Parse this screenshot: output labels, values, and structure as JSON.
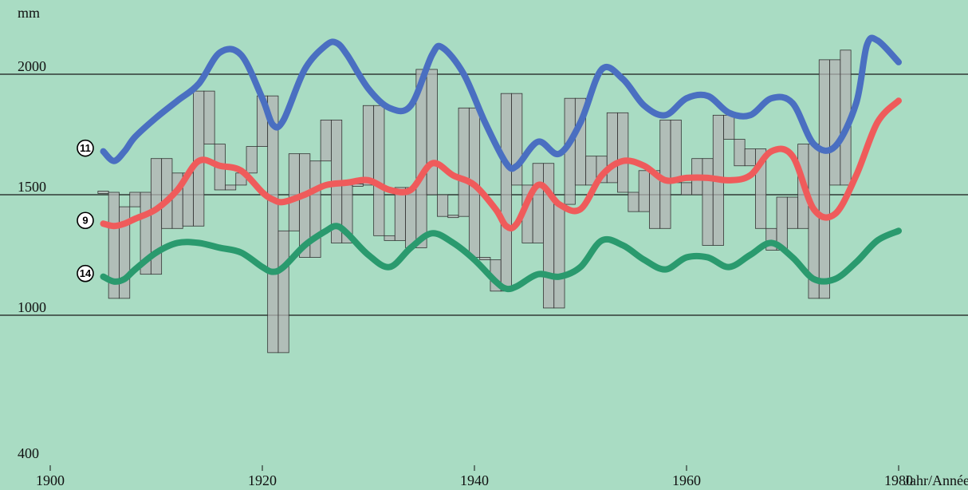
{
  "chart_data": {
    "type": "line",
    "yunit": "mm",
    "xlabel": "Jahr/Année",
    "xlim": [
      1900,
      1982
    ],
    "ylim": [
      400,
      2250
    ],
    "x_ticks": [
      "1900",
      "1920",
      "1940",
      "1960",
      "1980"
    ],
    "y_ticks": [
      "400",
      "1000",
      "1500",
      "2000"
    ],
    "grid": "horizontal at 1000, 1500, 2000",
    "background": "#a9dcc3",
    "series": [
      {
        "name": "⑪",
        "color": "#4a6fc1",
        "x": [
          1905,
          1906,
          1907,
          1908,
          1910,
          1912,
          1914,
          1916,
          1918,
          1920,
          1921,
          1922,
          1924,
          1926,
          1927,
          1928,
          1930,
          1932,
          1934,
          1936,
          1937,
          1939,
          1941,
          1943,
          1944,
          1946,
          1948,
          1950,
          1952,
          1954,
          1956,
          1958,
          1960,
          1962,
          1964,
          1966,
          1968,
          1970,
          1972,
          1974,
          1976,
          1977,
          1978,
          1980
        ],
        "values": [
          1680,
          1640,
          1680,
          1740,
          1820,
          1890,
          1960,
          2090,
          2080,
          1900,
          1790,
          1810,
          2020,
          2120,
          2130,
          2080,
          1940,
          1860,
          1870,
          2080,
          2110,
          2000,
          1800,
          1630,
          1620,
          1720,
          1670,
          1800,
          2020,
          1980,
          1870,
          1830,
          1900,
          1910,
          1840,
          1830,
          1900,
          1880,
          1710,
          1700,
          1880,
          2120,
          2140,
          2050
        ]
      },
      {
        "name": "⑨",
        "color": "#ef5b5b",
        "x": [
          1905,
          1906,
          1907,
          1908,
          1910,
          1912,
          1914,
          1916,
          1918,
          1920,
          1921,
          1922,
          1924,
          1926,
          1928,
          1930,
          1932,
          1934,
          1936,
          1938,
          1940,
          1942,
          1943,
          1944,
          1946,
          1948,
          1950,
          1952,
          1954,
          1956,
          1958,
          1960,
          1962,
          1964,
          1966,
          1968,
          1970,
          1972,
          1974,
          1976,
          1978,
          1980
        ],
        "values": [
          1380,
          1370,
          1380,
          1400,
          1440,
          1520,
          1640,
          1620,
          1600,
          1510,
          1480,
          1470,
          1500,
          1540,
          1550,
          1560,
          1520,
          1520,
          1630,
          1580,
          1540,
          1440,
          1370,
          1380,
          1540,
          1460,
          1440,
          1580,
          1640,
          1620,
          1560,
          1570,
          1570,
          1560,
          1580,
          1680,
          1660,
          1440,
          1420,
          1580,
          1800,
          1890
        ]
      },
      {
        "name": "⑭",
        "color": "#2a9a6e",
        "x": [
          1905,
          1906,
          1907,
          1908,
          1910,
          1912,
          1914,
          1916,
          1918,
          1920,
          1921,
          1922,
          1924,
          1926,
          1927,
          1928,
          1930,
          1932,
          1934,
          1936,
          1938,
          1940,
          1942,
          1943,
          1944,
          1946,
          1948,
          1950,
          1952,
          1954,
          1956,
          1958,
          1960,
          1962,
          1964,
          1966,
          1968,
          1970,
          1972,
          1974,
          1976,
          1978,
          1980
        ],
        "values": [
          1160,
          1140,
          1150,
          1190,
          1260,
          1300,
          1300,
          1280,
          1260,
          1200,
          1180,
          1200,
          1290,
          1350,
          1370,
          1340,
          1250,
          1200,
          1280,
          1340,
          1300,
          1230,
          1140,
          1110,
          1120,
          1170,
          1160,
          1200,
          1310,
          1290,
          1230,
          1190,
          1240,
          1240,
          1200,
          1250,
          1300,
          1240,
          1150,
          1150,
          1220,
          1310,
          1350
        ]
      }
    ],
    "bars": {
      "color": "#b4b4b4",
      "start_year": 1905,
      "values": [
        1510,
        1070,
        1450,
        1510,
        1170,
        1650,
        1360,
        1590,
        1370,
        1930,
        1710,
        1520,
        1540,
        1590,
        1700,
        1910,
        840,
        1350,
        1670,
        1240,
        1640,
        1810,
        1300,
        1540,
        1540,
        1870,
        1330,
        1310,
        1530,
        1280,
        2020,
        1500,
        1410,
        1410,
        1860,
        1240,
        1230,
        1100,
        1920,
        1540,
        1300,
        1630,
        1030,
        1460,
        1900,
        1540,
        1660,
        1550,
        1840,
        1510,
        1430,
        1600,
        1360,
        1810,
        1550,
        1500,
        1650,
        1290,
        1830,
        1730,
        1620,
        1690,
        1360,
        1270,
        1490,
        1360,
        1710,
        1070,
        2060,
        1540,
        2100
      ]
    }
  }
}
